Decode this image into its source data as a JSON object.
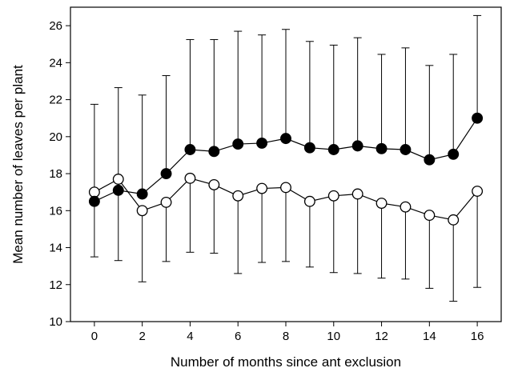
{
  "chart_data": {
    "type": "line",
    "title": "",
    "xlabel": "Number of months since ant exclusion",
    "ylabel": "Mean number of leaves per plant",
    "xlim": [
      -1,
      17
    ],
    "ylim": [
      10,
      27
    ],
    "xticks": [
      0,
      2,
      4,
      6,
      8,
      10,
      12,
      14,
      16
    ],
    "yticks": [
      10,
      12,
      14,
      16,
      18,
      20,
      22,
      24,
      26
    ],
    "grid": false,
    "legend": "none",
    "x": [
      0,
      1,
      2,
      3,
      4,
      5,
      6,
      7,
      8,
      9,
      10,
      11,
      12,
      13,
      14,
      15,
      16
    ],
    "series": [
      {
        "marker": "filled-circle",
        "color": "#000000",
        "values": [
          16.5,
          17.1,
          16.9,
          18.0,
          19.3,
          19.2,
          19.6,
          19.65,
          19.9,
          19.4,
          19.3,
          19.5,
          19.35,
          19.3,
          18.75,
          19.05,
          21.0
        ],
        "error_upper": [
          21.75,
          22.65,
          22.25,
          23.3,
          25.25,
          25.25,
          25.7,
          25.5,
          25.8,
          25.15,
          24.95,
          25.35,
          24.45,
          24.8,
          23.85,
          24.45,
          26.55
        ]
      },
      {
        "marker": "open-circle",
        "color": "#000000",
        "values": [
          17.0,
          17.7,
          16.0,
          16.45,
          17.75,
          17.4,
          16.8,
          17.2,
          17.25,
          16.5,
          16.8,
          16.9,
          16.4,
          16.2,
          15.75,
          15.5,
          17.05
        ],
        "error_lower": [
          13.5,
          13.3,
          12.15,
          13.25,
          13.75,
          13.7,
          12.6,
          13.2,
          13.25,
          12.95,
          12.65,
          12.6,
          12.35,
          12.3,
          11.8,
          11.1,
          11.85
        ]
      }
    ]
  }
}
